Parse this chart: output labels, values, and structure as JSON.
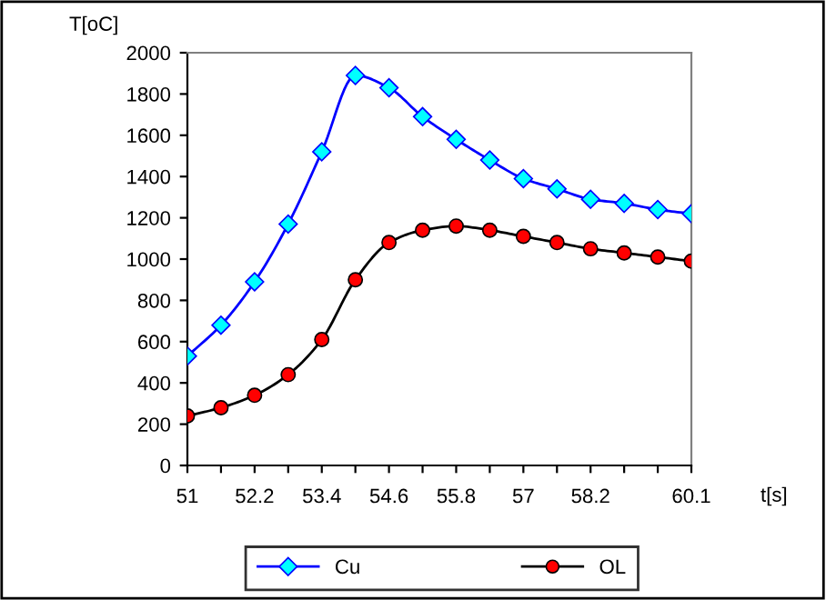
{
  "chart_data": {
    "type": "line",
    "ylabel": "T[oC]",
    "xlabel": "t[s]",
    "categories": [
      "51",
      null,
      "52.2",
      null,
      "53.4",
      null,
      "54.6",
      null,
      "55.8",
      null,
      "57",
      null,
      "58.2",
      null,
      null,
      "60.1"
    ],
    "series": [
      {
        "name": "Cu",
        "color": "#0000ff",
        "marker": "diamond",
        "colors": [
          "#00ffff",
          "#00ffff",
          "#00ffff",
          "#00ffff",
          "#00ffff",
          "#00ffff",
          "#00ffff",
          "#00ffff",
          "#00ffff",
          "#00ffff",
          "#00ffff",
          "#00ffff",
          "#00ffff",
          "#00ffff",
          "#00ffff",
          "#00ffff"
        ],
        "values": [
          530,
          680,
          890,
          1170,
          1520,
          1890,
          1830,
          1690,
          1580,
          1480,
          1390,
          1340,
          1290,
          1270,
          1240,
          1220
        ]
      },
      {
        "name": "OL",
        "color": "#000000",
        "marker": "circle",
        "colors": [
          "#ff0000",
          "#ff0000",
          "#ff0000",
          "#ff0000",
          "#ff0000",
          "#ff0000",
          "#ff0000",
          "#ff0000",
          "#ff0000",
          "#ff0000",
          "#ff0000",
          "#ff0000",
          "#ff0000",
          "#ff0000",
          "#ff0000",
          "#ff0000"
        ],
        "values": [
          240,
          280,
          340,
          440,
          610,
          900,
          1080,
          1140,
          1160,
          1140,
          1110,
          1080,
          1050,
          1030,
          1010,
          990
        ]
      }
    ],
    "ylim": [
      0,
      2000
    ],
    "yticks": [
      0,
      200,
      400,
      600,
      800,
      1000,
      1200,
      1400,
      1600,
      1800,
      2000
    ],
    "grid": false,
    "legend": "bottom",
    "line_style": "solid"
  }
}
